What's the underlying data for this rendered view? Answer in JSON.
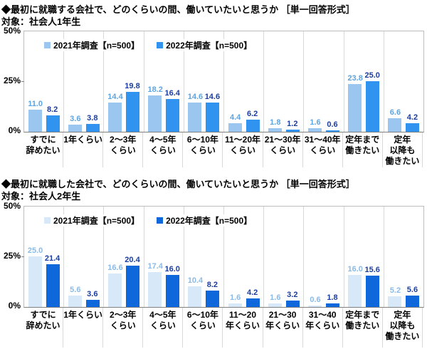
{
  "chart_data": [
    {
      "type": "bar",
      "title": "◆最初に就職する会社で、どのくらいの間、働いていたいと思うか ［単一回答形式］",
      "subtitle": "対象：社会人1年生",
      "ylim": [
        0,
        50
      ],
      "ytick_labels": [
        "50%",
        "25%",
        "0%"
      ],
      "grid": false,
      "legend_position": "inside-top-left",
      "categories": [
        "すでに\n辞めたい",
        "1年くらい",
        "2～3年\nくらい",
        "4～5年\nくらい",
        "6～10年\nくらい",
        "11～20年\nくらい",
        "21～30年\nくらい",
        "31～40年\nくらい",
        "定年まで\n働きたい",
        "定年\n以降も\n働きたい"
      ],
      "series": [
        {
          "name": "2021年調査【n=500】",
          "color": "#9ac6f0",
          "label_color": "#5ea4e0",
          "values": [
            11.0,
            3.6,
            14.4,
            18.2,
            14.6,
            4.4,
            1.8,
            1.6,
            23.8,
            6.6
          ]
        },
        {
          "name": "2022年調査【n=500】",
          "color": "#3093f0",
          "label_color": "#1b3d9e",
          "values": [
            8.2,
            3.8,
            19.8,
            16.4,
            14.6,
            6.2,
            1.2,
            0.6,
            25.0,
            4.2
          ]
        }
      ]
    },
    {
      "type": "bar",
      "title": "◆最初に就職した会社で、どのくらいの間、働いていたいと思うか ［単一回答形式］",
      "subtitle": "対象：社会人2年生",
      "ylim": [
        0,
        50
      ],
      "ytick_labels": [
        "50%",
        "25%",
        "0%"
      ],
      "grid": false,
      "legend_position": "inside-top-left",
      "categories": [
        "すでに\n辞めたい",
        "1年くらい",
        "2～3年\nくらい",
        "4～5年\nくらい",
        "6～10年\nくらい",
        "11～20\n年くらい",
        "21～30\n年くらい",
        "31～40\n年くらい",
        "定年まで\n働きたい",
        "定年\n以降も\n働きたい"
      ],
      "series": [
        {
          "name": "2021年調査【n=500】",
          "color": "#d7e9f8",
          "label_color": "#8abae6",
          "values": [
            25.0,
            5.6,
            16.6,
            17.4,
            10.4,
            1.6,
            1.6,
            0.6,
            16.0,
            5.2
          ]
        },
        {
          "name": "2022年調査【n=500】",
          "color": "#0e68db",
          "label_color": "#1b3d9e",
          "values": [
            21.4,
            3.6,
            20.4,
            16.0,
            8.2,
            4.2,
            3.2,
            1.8,
            15.6,
            5.6
          ]
        }
      ]
    }
  ]
}
